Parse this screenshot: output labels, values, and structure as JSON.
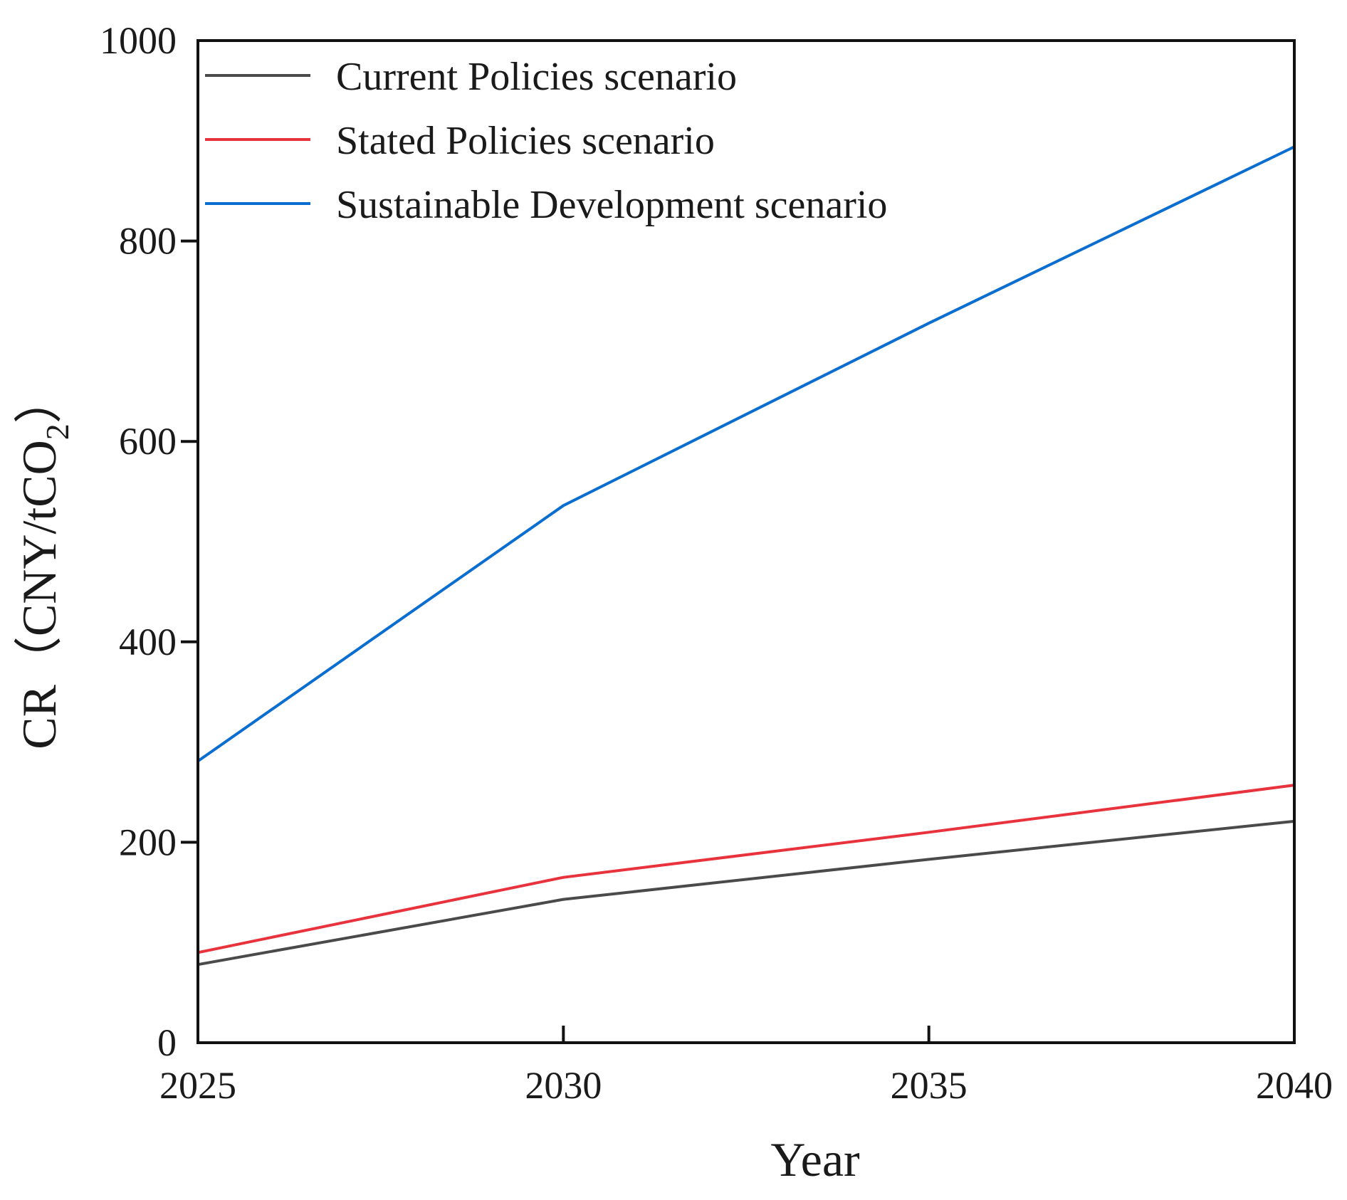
{
  "chart_data": {
    "type": "line",
    "title": "",
    "xlabel": "Year",
    "ylabel_main": "CR（CNY/tCO",
    "ylabel_subscript": "2",
    "ylabel_close": "）",
    "x": [
      2025,
      2030,
      2035,
      2040
    ],
    "x_ticks": [
      "2025",
      "2030",
      "2035",
      "2040"
    ],
    "y_ticks": [
      "0",
      "200",
      "400",
      "600",
      "800",
      "1000"
    ],
    "xlim": [
      2025,
      2040
    ],
    "ylim": [
      0,
      1000
    ],
    "grid": false,
    "legend_position": "top-left",
    "series": [
      {
        "name": "Current Policies scenario",
        "color": "#4a4a4a",
        "values": [
          78,
          143,
          183,
          221
        ]
      },
      {
        "name": "Stated Policies scenario",
        "color": "#e8323c",
        "values": [
          90,
          165,
          210,
          257
        ]
      },
      {
        "name": "Sustainable Development scenario",
        "color": "#0a6ed1",
        "values": [
          281,
          536,
          718,
          894
        ]
      }
    ]
  }
}
